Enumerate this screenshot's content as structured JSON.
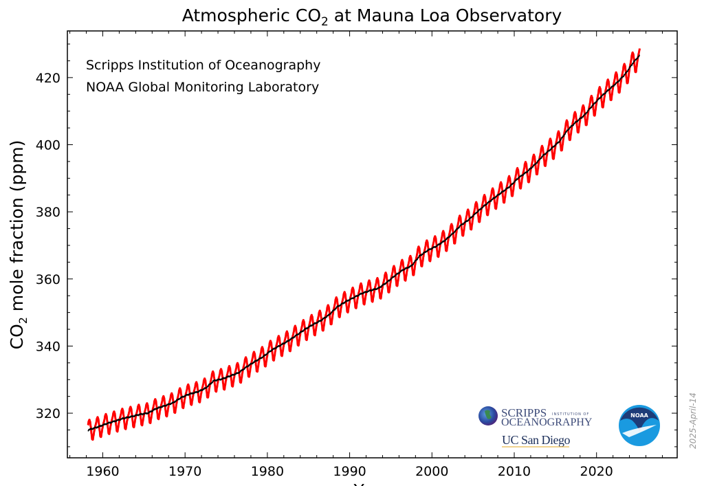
{
  "chart_data": {
    "type": "line",
    "title": "Atmospheric CO",
    "title_subscript": "2",
    "title_suffix": " at Mauna Loa Observatory",
    "ylabel": "CO",
    "ylabel_subscript": "2",
    "ylabel_suffix": " mole fraction (ppm)",
    "xlabel": "Year",
    "annotations": [
      "Scripps Institution of Oceanography",
      "NOAA Global Monitoring Laboratory"
    ],
    "date_stamp": "2025-April-14",
    "logos": {
      "scripps": "SCRIPPS INSTITUTION OF OCEANOGRAPHY",
      "ucsd": "UC San Diego",
      "noaa": "NOAA"
    },
    "xlim": [
      1955.7,
      2029.8
    ],
    "ylim": [
      306.7,
      433.9
    ],
    "xticks": [
      1960,
      1970,
      1980,
      1990,
      2000,
      2010,
      2020
    ],
    "yticks": [
      320,
      340,
      360,
      380,
      400,
      420
    ],
    "grid": false,
    "series": [
      {
        "style": "monthly mean",
        "color": "#ff0000",
        "start": 1958.2,
        "end": 2025.25,
        "annual_years": [
          1958,
          1959,
          1960,
          1961,
          1962,
          1963,
          1964,
          1965,
          1966,
          1967,
          1968,
          1969,
          1970,
          1971,
          1972,
          1973,
          1974,
          1975,
          1976,
          1977,
          1978,
          1979,
          1980,
          1981,
          1982,
          1983,
          1984,
          1985,
          1986,
          1987,
          1988,
          1989,
          1990,
          1991,
          1992,
          1993,
          1994,
          1995,
          1996,
          1997,
          1998,
          1999,
          2000,
          2001,
          2002,
          2003,
          2004,
          2005,
          2006,
          2007,
          2008,
          2009,
          2010,
          2011,
          2012,
          2013,
          2014,
          2015,
          2016,
          2017,
          2018,
          2019,
          2020,
          2021,
          2022,
          2023,
          2024,
          2025
        ],
        "annual_trend": [
          315.2,
          315.98,
          316.91,
          317.64,
          318.45,
          318.99,
          319.62,
          320.04,
          321.37,
          322.18,
          323.05,
          324.62,
          325.68,
          326.32,
          327.46,
          329.68,
          330.19,
          331.12,
          332.03,
          333.84,
          335.41,
          336.84,
          338.76,
          340.12,
          341.48,
          343.15,
          344.87,
          346.35,
          347.61,
          349.31,
          351.69,
          353.2,
          354.45,
          355.7,
          356.54,
          357.21,
          358.96,
          360.97,
          362.74,
          363.88,
          366.84,
          368.54,
          369.71,
          371.32,
          373.45,
          375.98,
          377.7,
          379.98,
          382.09,
          384.02,
          385.83,
          387.64,
          390.1,
          391.85,
          394.06,
          396.74,
          398.81,
          401.01,
          404.41,
          406.76,
          408.72,
          411.65,
          414.21,
          416.41,
          418.53,
          421.08,
          424.61,
          427.3
        ],
        "seasonal_cycle_ppm": [
          0.06,
          0.76,
          1.46,
          2.56,
          2.96,
          2.36,
          0.76,
          -1.34,
          -3.14,
          -3.34,
          -2.14,
          -0.94
        ]
      },
      {
        "style": "seasonally corrected",
        "color": "#000000"
      }
    ]
  }
}
